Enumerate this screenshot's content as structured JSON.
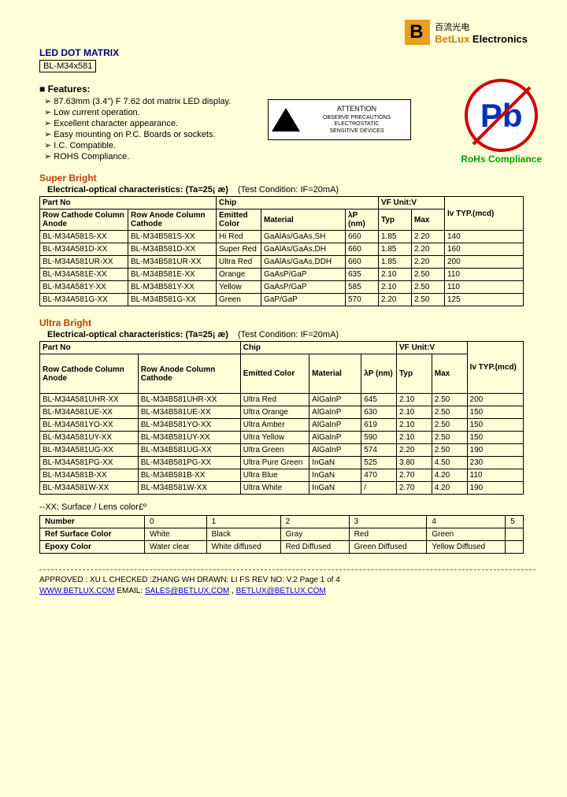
{
  "logo": {
    "cn": "百流光电",
    "company": "BetLux",
    "company2": " Electronics"
  },
  "title": "LED DOT MATRIX",
  "partcode": "BL-M34x581",
  "features": {
    "heading": "Features:",
    "items": [
      "87.63mm (3.4\") F 7.62 dot matrix LED display.",
      "Low current operation.",
      "Excellent character appearance.",
      "Easy mounting on P.C. Boards or sockets.",
      "I.C. Compatible.",
      "ROHS Compliance."
    ]
  },
  "esd": {
    "attention": "ATTENTION",
    "line1": "OBSERVE PRECAUTIONS",
    "line2": "ELECTROSTATIC",
    "line3": "SENSITIVE DEVICES"
  },
  "pb": {
    "symbol": "Pb",
    "label": "RoHs Compliance"
  },
  "super": {
    "title": "Super Bright",
    "subhead": "Electrical-optical characteristics: (Ta=25¡ æ)",
    "cond": "(Test Condition: IF=20mA)",
    "headers": {
      "partno": "Part No",
      "rowc": "Row      Cathode Column Anode",
      "rowa": "Row Anode Column Cathode",
      "chip": "Chip",
      "emit": "Emitted Color",
      "mat": "Material",
      "lam": "λP (nm)",
      "vf": "VF Unit:V",
      "typ": "Typ",
      "max": "Max",
      "iv": "Iv TYP.(mcd)"
    },
    "rows": [
      {
        "p1": "BL-M34A581S-XX",
        "p2": "BL-M34B581S-XX",
        "color": "Hi Red",
        "mat": "GaAlAs/GaAs,SH",
        "lam": "660",
        "typ": "1.85",
        "max": "2.20",
        "iv": "140"
      },
      {
        "p1": "BL-M34A581D-XX",
        "p2": "BL-M34B581D-XX",
        "color": "Super Red",
        "mat": "GaAlAs/GaAs,DH",
        "lam": "660",
        "typ": "1.85",
        "max": "2.20",
        "iv": "160"
      },
      {
        "p1": "BL-M34A581UR-XX",
        "p2": "BL-M34B581UR-XX",
        "color": "Ultra Red",
        "mat": "GaAlAs/GaAs,DDH",
        "lam": "660",
        "typ": "1.85",
        "max": "2.20",
        "iv": "200"
      },
      {
        "p1": "BL-M34A581E-XX",
        "p2": "BL-M34B581E-XX",
        "color": "Orange",
        "mat": "GaAsP/GaP",
        "lam": "635",
        "typ": "2.10",
        "max": "2.50",
        "iv": "110"
      },
      {
        "p1": "BL-M34A581Y-XX",
        "p2": "BL-M34B581Y-XX",
        "color": "Yellow",
        "mat": "GaAsP/GaP",
        "lam": "585",
        "typ": "2.10",
        "max": "2.50",
        "iv": "110"
      },
      {
        "p1": "BL-M34A581G-XX",
        "p2": "BL-M34B581G-XX",
        "color": "Green",
        "mat": "GaP/GaP",
        "lam": "570",
        "typ": "2.20",
        "max": "2.50",
        "iv": "125"
      }
    ]
  },
  "ultra": {
    "title": "Ultra Bright",
    "subhead": "Electrical-optical characteristics: (Ta=25¡ æ)",
    "cond": "(Test Condition: IF=20mA)",
    "rows": [
      {
        "p1": "BL-M34A581UHR-XX",
        "p2": "BL-M34B581UHR-XX",
        "color": "Ultra Red",
        "mat": "AlGaInP",
        "lam": "645",
        "typ": "2.10",
        "max": "2.50",
        "iv": "200"
      },
      {
        "p1": "BL-M34A581UE-XX",
        "p2": "BL-M34B581UE-XX",
        "color": "Ultra Orange",
        "mat": "AlGaInP",
        "lam": "630",
        "typ": "2.10",
        "max": "2.50",
        "iv": "150"
      },
      {
        "p1": "BL-M34A581YO-XX",
        "p2": "BL-M34B581YO-XX",
        "color": "Ultra Amber",
        "mat": "AlGaInP",
        "lam": "619",
        "typ": "2.10",
        "max": "2.50",
        "iv": "150"
      },
      {
        "p1": "BL-M34A581UY-XX",
        "p2": "BL-M34B581UY-XX",
        "color": "Ultra Yellow",
        "mat": "AlGaInP",
        "lam": "590",
        "typ": "2.10",
        "max": "2.50",
        "iv": "150"
      },
      {
        "p1": "BL-M34A581UG-XX",
        "p2": "BL-M34B581UG-XX",
        "color": "Ultra Green",
        "mat": "AlGaInP",
        "lam": "574",
        "typ": "2.20",
        "max": "2.50",
        "iv": "190"
      },
      {
        "p1": "BL-M34A581PG-XX",
        "p2": "BL-M34B581PG-XX",
        "color": "Ultra Pure Green",
        "mat": "InGaN",
        "lam": "525",
        "typ": "3.80",
        "max": "4.50",
        "iv": "230"
      },
      {
        "p1": "BL-M34A581B-XX",
        "p2": "BL-M34B581B-XX",
        "color": "Ultra Blue",
        "mat": "InGaN",
        "lam": "470",
        "typ": "2.70",
        "max": "4.20",
        "iv": "110"
      },
      {
        "p1": "BL-M34A581W-XX",
        "p2": "BL-M34B581W-XX",
        "color": "Ultra White",
        "mat": "InGaN",
        "lam": "/",
        "typ": "2.70",
        "max": "4.20",
        "iv": "190"
      }
    ]
  },
  "surface_note": "--XX: Surface / Lens color£º",
  "surface": {
    "h": {
      "num": "Number",
      "ref": "Ref Surface Color",
      "epo": "Epoxy Color"
    },
    "cols": [
      "0",
      "1",
      "2",
      "3",
      "4",
      "5"
    ],
    "ref": [
      "White",
      "Black",
      "Gray",
      "Red",
      "Green",
      ""
    ],
    "epo": [
      "Water clear",
      "White diffused",
      "Red Diffused",
      "Green Diffused",
      "Yellow Diffused",
      ""
    ]
  },
  "footer": {
    "line1": "APPROVED : XU L    CHECKED :ZHANG WH    DRAWN: LI FS       REV NO: V.2     Page 1 of 4",
    "url": "WWW.BETLUX.COM",
    "email_lbl": "     EMAIL: ",
    "email1": "SALES@BETLUX.COM",
    "sep": " , ",
    "email2": "BETLUX@BETLUX.COM"
  }
}
